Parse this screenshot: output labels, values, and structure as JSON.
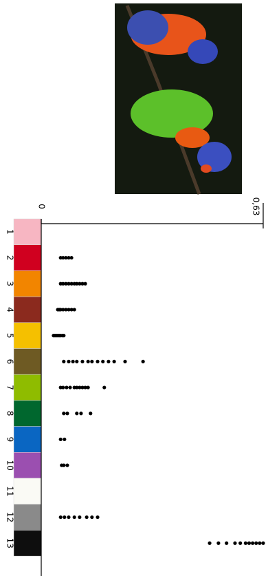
{
  "chart_data": {
    "type": "strip",
    "categories": [
      "1",
      "2",
      "3",
      "4",
      "5",
      "6",
      "7",
      "8",
      "9",
      "10",
      "11",
      "12",
      "13"
    ],
    "colors": [
      "#f7b6c2",
      "#d0001f",
      "#f28500",
      "#8b2a1e",
      "#f5c000",
      "#6e5a23",
      "#8fbc00",
      "#00672e",
      "#0a66c2",
      "#9b4fb0",
      "#fafaf5",
      "#8a8a8a",
      "#0e0e0e"
    ],
    "values": [
      [],
      [
        0.055,
        0.062,
        0.07,
        0.078,
        0.086
      ],
      [
        0.055,
        0.062,
        0.07,
        0.078,
        0.086,
        0.094,
        0.101,
        0.109,
        0.117,
        0.125
      ],
      [
        0.047,
        0.051,
        0.055,
        0.062,
        0.07,
        0.078,
        0.086,
        0.094
      ],
      [
        0.035,
        0.039,
        0.043,
        0.047,
        0.051,
        0.055,
        0.06,
        0.064
      ],
      [
        0.064,
        0.078,
        0.09,
        0.101,
        0.117,
        0.133,
        0.144,
        0.16,
        0.175,
        0.191,
        0.207,
        0.238,
        0.289
      ],
      [
        0.055,
        0.062,
        0.072,
        0.082,
        0.094,
        0.101,
        0.109,
        0.117,
        0.125,
        0.133,
        0.179
      ],
      [
        0.064,
        0.074,
        0.101,
        0.113,
        0.14
      ],
      [
        0.055,
        0.066
      ],
      [
        0.058,
        0.064,
        0.074
      ],
      [],
      [
        0.055,
        0.066,
        0.078,
        0.094,
        0.109,
        0.129,
        0.144,
        0.16
      ],
      [
        0.478,
        0.503,
        0.526,
        0.55,
        0.565,
        0.58,
        0.59,
        0.6,
        0.61,
        0.62,
        0.63
      ]
    ],
    "xlim": [
      0,
      0.63
    ],
    "xticks": [
      0,
      {
        "value": 0.63,
        "label": "0,63"
      }
    ]
  }
}
